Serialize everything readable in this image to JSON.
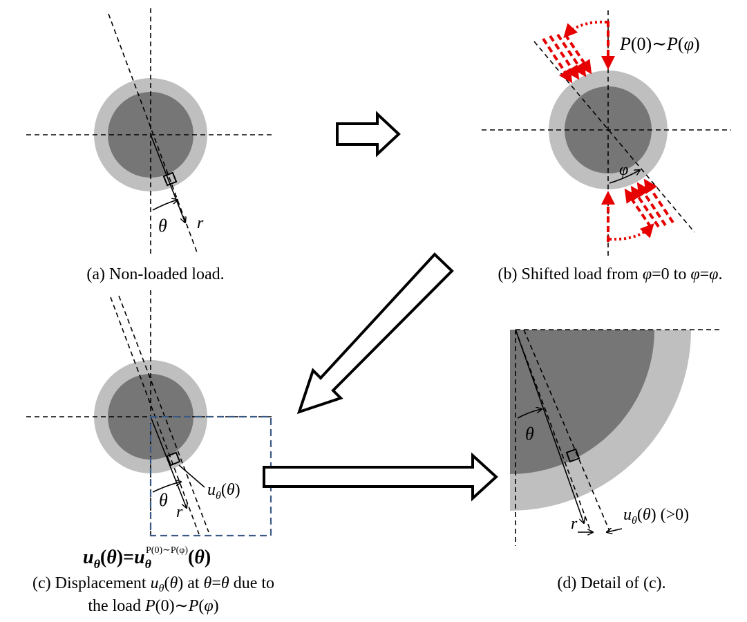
{
  "colors": {
    "outer_ring": "#bfbfbf",
    "inner_disk": "#767676",
    "load_arrows": "#e60000",
    "box": "#3a5a86"
  },
  "panel_a": {
    "theta": "θ",
    "r": "r",
    "caption": "(a) Non-loaded load."
  },
  "panel_b": {
    "load_label": {
      "p1": "P",
      "a1": "(0)",
      "sep": "∼",
      "p2": "P",
      "a2": "(",
      "phi": "φ",
      "a3": ")"
    },
    "phi": "φ",
    "caption": {
      "c1": "(b) Shifted load from ",
      "phi1": "φ",
      "c2": "=0 to ",
      "phi2": "φ",
      "c3": "=",
      "phi3": "φ",
      "c4": "."
    }
  },
  "panel_c": {
    "u_label": {
      "u": "u",
      "sub": "θ",
      "arg1": "(",
      "arg": "θ",
      "arg2": ")"
    },
    "theta": "θ",
    "r": "r",
    "formula": {
      "u": "u",
      "sub": "θ",
      "a1": "(",
      "th": "θ",
      "a2": ")=",
      "u2": "u",
      "sub2": "θ",
      "sup": "P(0)∼P(φ)",
      "a3": "(",
      "th2": "θ",
      "a4": ")"
    },
    "caption_line1": {
      "c1": "(c) Displacement ",
      "u": "u",
      "sub": "θ",
      "a1": "(",
      "th": "θ",
      "a2": ") at ",
      "th2": "θ",
      "eq": "=",
      "th3": "θ",
      "c2": " due to"
    },
    "caption_line2": {
      "c1": "the load ",
      "p1": "P",
      "a1": "(0)∼",
      "p2": "P",
      "a2": "(",
      "phi": "φ",
      "a3": ")"
    }
  },
  "panel_d": {
    "theta": "θ",
    "r": "r",
    "u_label": {
      "u": "u",
      "sub": "θ",
      "a1": "(",
      "th": "θ",
      "a2": ") (>0)"
    },
    "caption": "(d) Detail of (c)."
  }
}
